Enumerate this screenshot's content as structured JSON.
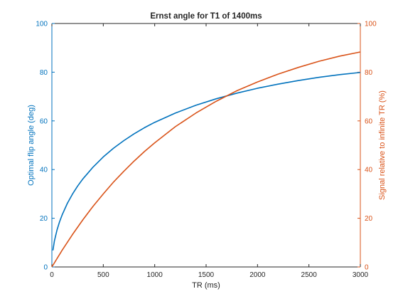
{
  "chart_data": {
    "type": "line",
    "title": "Ernst angle for T1 of 1400ms",
    "xlabel": "TR (ms)",
    "xlim": [
      0,
      3000
    ],
    "xticks": [
      0,
      500,
      1000,
      1500,
      2000,
      2500,
      3000
    ],
    "grid": false,
    "y_left": {
      "label": "Optimal flip angle (deg)",
      "lim": [
        0,
        100
      ],
      "ticks": [
        0,
        20,
        40,
        60,
        80,
        100
      ],
      "color": "#0072BD"
    },
    "y_right": {
      "label": "Signal relative to infinite TR (%)",
      "lim": [
        0,
        100
      ],
      "ticks": [
        0,
        20,
        40,
        60,
        80,
        100
      ],
      "color": "#D95319"
    },
    "series": [
      {
        "axis": "left",
        "color": "#0072BD",
        "x": [
          10,
          25,
          50,
          75,
          100,
          150,
          200,
          250,
          300,
          400,
          500,
          600,
          700,
          800,
          900,
          1000,
          1200,
          1400,
          1600,
          1800,
          2000,
          2200,
          2400,
          2600,
          2800,
          3000
        ],
        "y": [
          6.8,
          10.8,
          15.2,
          18.6,
          21.4,
          26.1,
          29.9,
          33.2,
          36.1,
          41.0,
          45.2,
          48.8,
          51.9,
          54.7,
          57.2,
          59.4,
          63.2,
          66.4,
          69.1,
          71.4,
          73.4,
          75.1,
          76.6,
          77.9,
          79.0,
          79.9
        ]
      },
      {
        "axis": "right",
        "color": "#D95319",
        "x": [
          0,
          100,
          200,
          300,
          400,
          500,
          600,
          700,
          800,
          900,
          1000,
          1200,
          1400,
          1600,
          1800,
          2000,
          2200,
          2400,
          2600,
          2800,
          3000
        ],
        "y": [
          0,
          6.9,
          13.3,
          19.3,
          24.9,
          30.0,
          34.9,
          39.3,
          43.5,
          47.4,
          51.0,
          57.6,
          63.2,
          68.1,
          72.4,
          76.0,
          79.2,
          82.0,
          84.5,
          86.6,
          88.3
        ]
      }
    ]
  }
}
